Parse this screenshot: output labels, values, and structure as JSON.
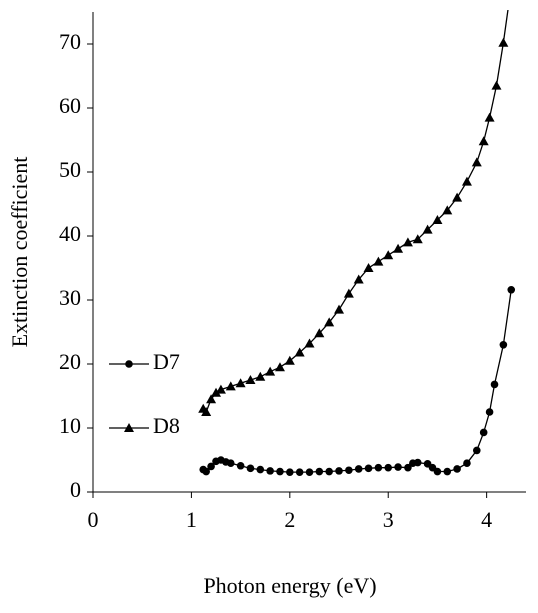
{
  "chart_data": {
    "type": "line",
    "xlabel": "Photon energy (eV)",
    "ylabel": "Extinction coefficient",
    "xlim": [
      0,
      4.4
    ],
    "ylim": [
      0,
      75
    ],
    "xticks": [
      0,
      1,
      2,
      3,
      4
    ],
    "yticks": [
      0,
      10,
      20,
      30,
      40,
      50,
      60,
      70
    ],
    "legend": "left",
    "color": "#000000",
    "series": [
      {
        "name": "D7",
        "marker": "circle",
        "x": [
          1.12,
          1.15,
          1.2,
          1.25,
          1.3,
          1.35,
          1.4,
          1.5,
          1.6,
          1.7,
          1.8,
          1.9,
          2.0,
          2.1,
          2.2,
          2.3,
          2.4,
          2.5,
          2.6,
          2.7,
          2.8,
          2.9,
          3.0,
          3.1,
          3.2,
          3.25,
          3.3,
          3.4,
          3.45,
          3.5,
          3.6,
          3.7,
          3.8,
          3.9,
          3.97,
          4.03,
          4.08,
          4.17,
          4.25
        ],
        "values": [
          3.5,
          3.2,
          4.0,
          4.8,
          5.0,
          4.7,
          4.5,
          4.1,
          3.7,
          3.5,
          3.3,
          3.2,
          3.1,
          3.1,
          3.1,
          3.2,
          3.2,
          3.3,
          3.4,
          3.6,
          3.7,
          3.8,
          3.8,
          3.9,
          3.8,
          4.5,
          4.6,
          4.4,
          3.8,
          3.2,
          3.2,
          3.6,
          4.5,
          6.5,
          9.3,
          12.5,
          16.8,
          23,
          31.6
        ]
      },
      {
        "name": "D8",
        "marker": "triangle",
        "x": [
          1.12,
          1.15,
          1.2,
          1.25,
          1.3,
          1.4,
          1.5,
          1.6,
          1.7,
          1.8,
          1.9,
          2.0,
          2.1,
          2.2,
          2.3,
          2.4,
          2.5,
          2.6,
          2.7,
          2.8,
          2.9,
          3.0,
          3.1,
          3.2,
          3.3,
          3.4,
          3.5,
          3.6,
          3.7,
          3.8,
          3.9,
          3.97,
          4.03,
          4.1,
          4.17,
          4.25
        ],
        "values": [
          13,
          12.5,
          14.5,
          15.5,
          16,
          16.5,
          17,
          17.5,
          18,
          18.8,
          19.5,
          20.5,
          21.8,
          23.2,
          24.8,
          26.5,
          28.5,
          31,
          33.2,
          35,
          36,
          37,
          38,
          39,
          39.5,
          41,
          42.5,
          44,
          46,
          48.5,
          51.5,
          54.8,
          58.5,
          63.5,
          70.2,
          79
        ]
      }
    ]
  }
}
